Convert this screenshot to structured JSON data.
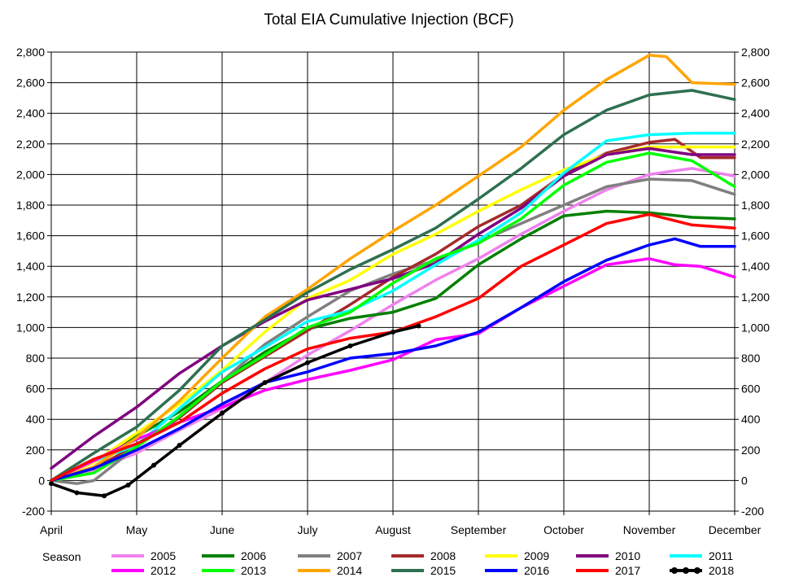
{
  "chart_data": {
    "type": "line",
    "title": "Total EIA Cumulative Injection (BCF)",
    "xlabel": "",
    "ylabel": "",
    "x_ticks": [
      "April",
      "May",
      "June",
      "July",
      "August",
      "September",
      "October",
      "November",
      "December"
    ],
    "x_range": [
      0,
      8
    ],
    "ylim": [
      -200,
      2800
    ],
    "y_ticks": [
      -200,
      0,
      200,
      400,
      600,
      800,
      1000,
      1200,
      1400,
      1600,
      1800,
      2000,
      2200,
      2400,
      2600,
      2800
    ],
    "y_tick_labels": [
      "-200",
      "0",
      "200",
      "400",
      "600",
      "800",
      "1,000",
      "1,200",
      "1,400",
      "1,600",
      "1,800",
      "2,000",
      "2,200",
      "2,400",
      "2,600",
      "2,800"
    ],
    "grid": true,
    "secondary_y_axis_mirrored": true,
    "legend_title": "Season",
    "legend_position": "bottom",
    "series": [
      {
        "name": "2005",
        "color": "#ee82ee",
        "x": [
          0,
          0.5,
          1,
          1.5,
          2,
          2.5,
          3,
          3.5,
          4,
          4.5,
          5,
          5.5,
          6,
          6.5,
          7,
          7.5,
          8
        ],
        "y": [
          0,
          70,
          180,
          330,
          470,
          640,
          820,
          980,
          1150,
          1310,
          1450,
          1610,
          1760,
          1900,
          2000,
          2040,
          1990
        ]
      },
      {
        "name": "2006",
        "color": "#008000",
        "x": [
          0,
          0.5,
          1,
          1.5,
          2,
          2.5,
          3,
          3.5,
          4,
          4.5,
          5,
          5.5,
          6,
          6.5,
          7,
          7.5,
          8
        ],
        "y": [
          0,
          120,
          290,
          450,
          650,
          840,
          990,
          1060,
          1100,
          1190,
          1410,
          1580,
          1730,
          1760,
          1750,
          1720,
          1710
        ]
      },
      {
        "name": "2007",
        "color": "#808080",
        "x": [
          0,
          0.3,
          0.5,
          1,
          1.5,
          2,
          2.5,
          3,
          3.5,
          4,
          4.5,
          5,
          5.5,
          6,
          6.5,
          7,
          7.5,
          8
        ],
        "y": [
          0,
          -20,
          0,
          220,
          420,
          650,
          890,
          1070,
          1240,
          1350,
          1440,
          1560,
          1680,
          1800,
          1920,
          1970,
          1960,
          1870
        ]
      },
      {
        "name": "2008",
        "color": "#a52a2a",
        "x": [
          0,
          0.5,
          1,
          1.5,
          2,
          2.5,
          3,
          3.5,
          4,
          4.5,
          5,
          5.5,
          6,
          6.5,
          7,
          7.3,
          7.6,
          8
        ],
        "y": [
          0,
          80,
          230,
          410,
          640,
          810,
          980,
          1150,
          1330,
          1480,
          1660,
          1800,
          2000,
          2140,
          2210,
          2230,
          2110,
          2110
        ]
      },
      {
        "name": "2009",
        "color": "#ffff00",
        "x": [
          0,
          0.5,
          1,
          1.5,
          2,
          2.5,
          3,
          3.5,
          4,
          4.5,
          5,
          5.5,
          6,
          6.5,
          7,
          7.5,
          8
        ],
        "y": [
          0,
          120,
          310,
          500,
          720,
          970,
          1190,
          1310,
          1480,
          1610,
          1760,
          1900,
          2030,
          2130,
          2180,
          2180,
          2180
        ]
      },
      {
        "name": "2010",
        "color": "#800080",
        "x": [
          0,
          0.5,
          1,
          1.5,
          2,
          2.5,
          3,
          3.5,
          4,
          4.5,
          5,
          5.5,
          6,
          6.5,
          7,
          7.5,
          8
        ],
        "y": [
          80,
          290,
          480,
          700,
          880,
          1040,
          1180,
          1250,
          1320,
          1420,
          1610,
          1780,
          1990,
          2130,
          2170,
          2130,
          2130
        ]
      },
      {
        "name": "2011",
        "color": "#00ffff",
        "x": [
          0,
          0.5,
          1,
          1.5,
          2,
          2.5,
          3,
          3.5,
          4,
          4.5,
          5,
          5.5,
          6,
          6.5,
          7,
          7.5,
          8
        ],
        "y": [
          0,
          130,
          230,
          470,
          710,
          870,
          1040,
          1110,
          1240,
          1410,
          1570,
          1750,
          2010,
          2220,
          2260,
          2270,
          2270
        ]
      },
      {
        "name": "2012",
        "color": "#ff00ff",
        "x": [
          0,
          0.5,
          1,
          1.5,
          2,
          2.5,
          3,
          3.5,
          4,
          4.5,
          5,
          5.5,
          6,
          6.5,
          7,
          7.3,
          7.6,
          8
        ],
        "y": [
          0,
          130,
          270,
          380,
          480,
          590,
          660,
          720,
          790,
          920,
          960,
          1130,
          1270,
          1410,
          1450,
          1410,
          1400,
          1330
        ]
      },
      {
        "name": "2013",
        "color": "#00ff00",
        "x": [
          0,
          0.5,
          1,
          1.5,
          2,
          2.5,
          3,
          3.5,
          4,
          4.5,
          5,
          5.5,
          6,
          6.5,
          7,
          7.5,
          8
        ],
        "y": [
          0,
          50,
          220,
          420,
          650,
          820,
          1000,
          1100,
          1290,
          1450,
          1550,
          1710,
          1930,
          2080,
          2140,
          2090,
          1920
        ]
      },
      {
        "name": "2014",
        "color": "#ffa500",
        "x": [
          0,
          0.5,
          1,
          1.5,
          2,
          2.5,
          3,
          3.5,
          4,
          4.5,
          5,
          5.5,
          6,
          6.5,
          7,
          7.2,
          7.5,
          8
        ],
        "y": [
          0,
          90,
          280,
          520,
          800,
          1070,
          1250,
          1450,
          1630,
          1800,
          1990,
          2180,
          2420,
          2620,
          2780,
          2770,
          2600,
          2590
        ]
      },
      {
        "name": "2015",
        "color": "#2e7050",
        "x": [
          0,
          0.5,
          1,
          1.5,
          2,
          2.5,
          3,
          3.5,
          4,
          4.5,
          5,
          5.5,
          6,
          6.5,
          7,
          7.5,
          8
        ],
        "y": [
          0,
          180,
          350,
          590,
          880,
          1050,
          1230,
          1380,
          1510,
          1650,
          1840,
          2040,
          2260,
          2420,
          2520,
          2550,
          2490
        ]
      },
      {
        "name": "2016",
        "color": "#0000ff",
        "x": [
          0,
          0.5,
          1,
          1.5,
          2,
          2.5,
          3,
          3.5,
          4,
          4.5,
          5,
          5.5,
          6,
          6.5,
          7,
          7.3,
          7.6,
          8
        ],
        "y": [
          0,
          80,
          200,
          340,
          500,
          640,
          710,
          800,
          830,
          880,
          970,
          1130,
          1300,
          1440,
          1540,
          1580,
          1530,
          1530
        ]
      },
      {
        "name": "2017",
        "color": "#ff0000",
        "x": [
          0,
          0.5,
          1,
          1.5,
          2,
          2.5,
          3,
          3.5,
          4,
          4.5,
          5,
          5.5,
          6,
          6.5,
          7,
          7.5,
          8
        ],
        "y": [
          0,
          140,
          240,
          380,
          570,
          730,
          860,
          930,
          970,
          1070,
          1190,
          1400,
          1540,
          1680,
          1740,
          1670,
          1650
        ]
      },
      {
        "name": "2018",
        "color": "#000000",
        "marker": "circle",
        "x": [
          0,
          0.3,
          0.62,
          0.9,
          1.2,
          1.5,
          2,
          2.5,
          3,
          3.5,
          4,
          4.3
        ],
        "y": [
          -20,
          -80,
          -100,
          -30,
          100,
          230,
          440,
          640,
          770,
          880,
          970,
          1010
        ]
      }
    ]
  }
}
